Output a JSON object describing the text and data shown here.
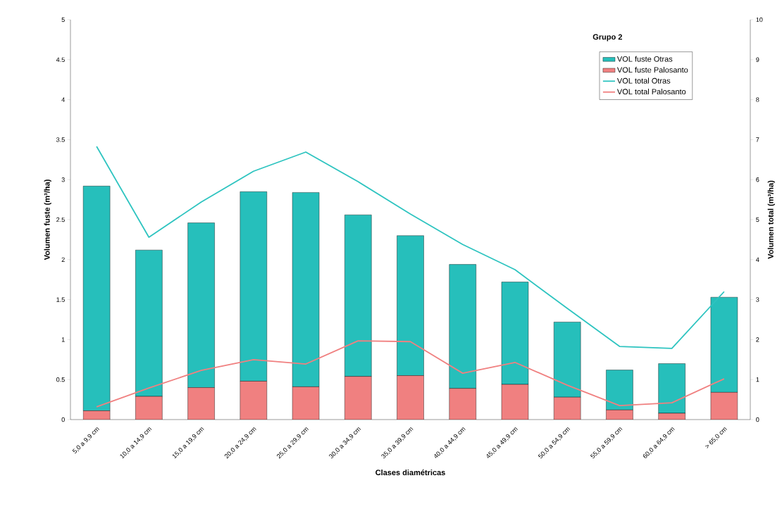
{
  "chart_data": {
    "type": "bar",
    "title": "Grupo 2",
    "xlabel": "Clases diamétricas",
    "ylabel": "Volumen fuste (m³/ha)",
    "y2label": "Volumen total (m³/ha)",
    "categories": [
      "5,0 a 9,9 cm",
      "10,0 a 14,9 cm",
      "15,0 a 19,9 cm",
      "20,0 a 24,9 cm",
      "25,0 a 29,9 cm",
      "30,0 a 34,9 cm",
      "35,0 a 39,9 cm",
      "40,0 a 44,9 cm",
      "45,0 a 49,9 cm",
      "50,0 a 54,9 cm",
      "55,0 a 59,9 cm",
      "60,0 a 64,9 cm",
      "> 65,0 cm"
    ],
    "stacked": true,
    "legend": "top right",
    "series": [
      {
        "name": "VOL fuste Palosanto",
        "color": "#f08080",
        "values": [
          0.11,
          0.29,
          0.4,
          0.48,
          0.41,
          0.54,
          0.55,
          0.39,
          0.44,
          0.28,
          0.12,
          0.08,
          0.34
        ]
      },
      {
        "name": "VOL fuste Otras",
        "color": "#26bfbb",
        "values": [
          2.81,
          1.83,
          2.06,
          2.37,
          2.43,
          2.02,
          1.75,
          1.55,
          1.28,
          0.94,
          0.5,
          0.62,
          1.19
        ]
      },
      {
        "name": "VOL total Otras",
        "type": "line",
        "axis": "y2",
        "color": "#2ec4c0",
        "values": [
          6.83,
          4.56,
          5.44,
          6.21,
          6.69,
          5.95,
          5.14,
          4.38,
          3.75,
          2.78,
          1.83,
          1.78,
          3.2
        ]
      },
      {
        "name": "VOL total Palosanto",
        "type": "line",
        "axis": "y2",
        "color": "#f08080",
        "values": [
          0.32,
          0.79,
          1.23,
          1.5,
          1.39,
          1.97,
          1.95,
          1.16,
          1.43,
          0.86,
          0.35,
          0.42,
          1.02
        ]
      }
    ],
    "ylim": [
      0,
      5
    ],
    "yticks": [
      0,
      0.5,
      1,
      1.5,
      2,
      2.5,
      3,
      3.5,
      4,
      4.5,
      5
    ],
    "y2lim": [
      0,
      10
    ],
    "y2ticks": [
      0,
      1,
      2,
      3,
      4,
      5,
      6,
      7,
      8,
      9,
      10
    ]
  }
}
